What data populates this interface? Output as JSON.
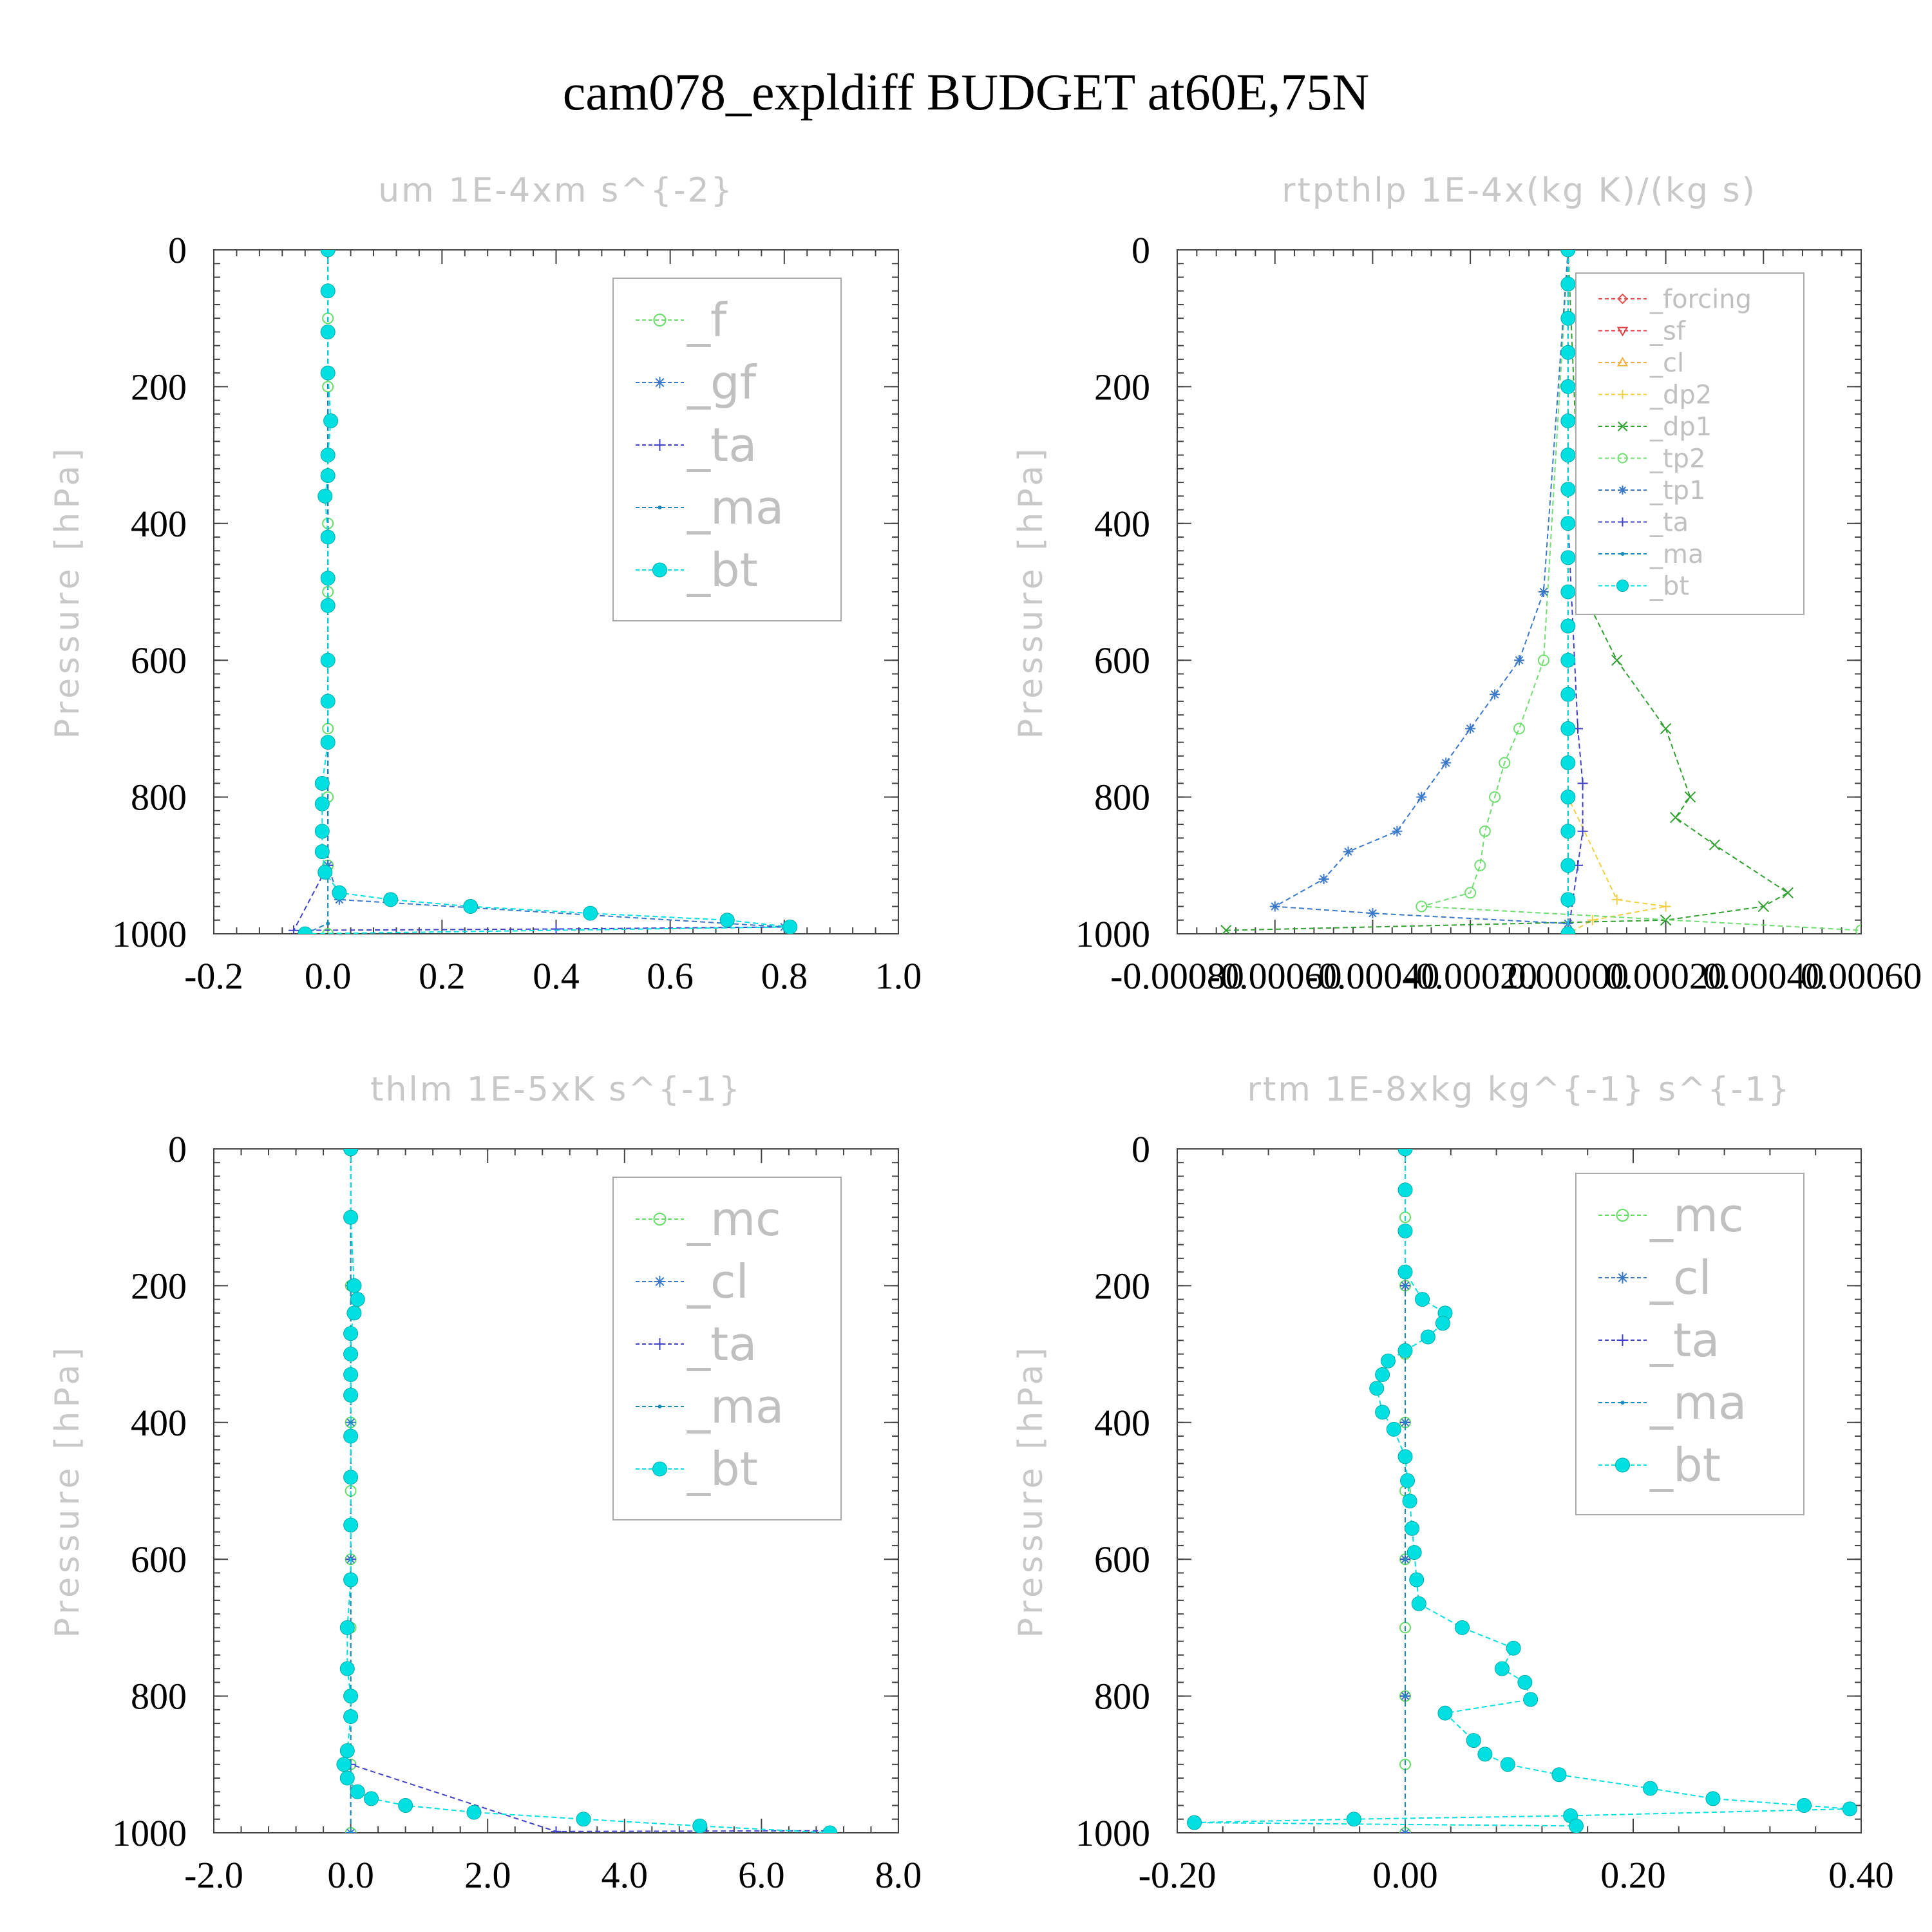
{
  "figure": {
    "title": "cam078_expldiff  BUDGET at60E,75N"
  },
  "colors": {
    "f": "#66dd66",
    "gf": "#3a78c8",
    "ta": "#4040c8",
    "ma": "#1a8ab8",
    "bt": "#00e0e0",
    "forcing": "#e05050",
    "sf": "#e04040",
    "cl_y": "#f0b040",
    "dp2": "#f0d040",
    "dp1": "#30a030",
    "tp2": "#70dd70",
    "tp1": "#3a78c8",
    "mc": "#66dd66",
    "cl": "#3a78c8"
  },
  "chart_data": [
    {
      "type": "line",
      "title": "um   1E-4xm s^{-2}",
      "ylabel": "Pressure [hPa]",
      "xlim": [
        -0.2,
        1.0
      ],
      "ylim": [
        1000,
        0
      ],
      "xticks": [
        "-0.2",
        "0.0",
        "0.2",
        "0.4",
        "0.6",
        "0.8",
        "1.0"
      ],
      "yticks": [
        "0",
        "200",
        "400",
        "600",
        "800",
        "1000"
      ],
      "legend_position": "top-right",
      "series": [
        {
          "name": "_f",
          "color": "#66dd66",
          "marker": "circle-open",
          "x": [
            0,
            0,
            0,
            0,
            0,
            0,
            0,
            0,
            0,
            0,
            0
          ],
          "y": [
            0,
            100,
            200,
            300,
            400,
            500,
            600,
            700,
            800,
            900,
            1000
          ]
        },
        {
          "name": "_gf",
          "color": "#3a78c8",
          "marker": "star",
          "x": [
            0,
            0,
            0,
            0,
            0.02,
            0.8
          ],
          "y": [
            0,
            300,
            600,
            900,
            950,
            990
          ]
        },
        {
          "name": "_ta",
          "color": "#4040c8",
          "marker": "plus",
          "x": [
            0,
            0,
            0,
            0,
            -0.06,
            0.4,
            0.8
          ],
          "y": [
            0,
            300,
            600,
            900,
            995,
            993,
            990
          ]
        },
        {
          "name": "_ma",
          "color": "#1a8ab8",
          "marker": "dot",
          "x": [
            0,
            0,
            0,
            0,
            0,
            -0.04
          ],
          "y": [
            0,
            300,
            600,
            900,
            985,
            1000
          ]
        },
        {
          "name": "_bt",
          "color": "#00e0e0",
          "marker": "circle-filled",
          "x": [
            0,
            0,
            0,
            0,
            0.005,
            0,
            0,
            -0.005,
            0,
            0,
            0,
            0,
            0,
            0,
            -0.01,
            -0.01,
            -0.01,
            -0.01,
            -0.005,
            0.02,
            0.11,
            0.25,
            0.46,
            0.7,
            0.81,
            -0.04
          ],
          "y": [
            0,
            60,
            120,
            180,
            250,
            300,
            330,
            360,
            420,
            480,
            520,
            600,
            660,
            720,
            780,
            810,
            850,
            880,
            910,
            940,
            950,
            960,
            970,
            980,
            990,
            1000
          ]
        }
      ]
    },
    {
      "type": "line",
      "title": "rtpthlp   1E-4x(kg K)/(kg s)",
      "ylabel": "Pressure [hPa]",
      "xlim": [
        -0.0008,
        0.0006
      ],
      "ylim": [
        1000,
        0
      ],
      "xticks": [
        "-0.00080",
        "-0.00060",
        "-0.00040",
        "-0.00020",
        "0.00000",
        "0.00020",
        "0.00040",
        "0.00060"
      ],
      "yticks": [
        "0",
        "200",
        "400",
        "600",
        "800",
        "1000"
      ],
      "legend_position": "top-right",
      "series": [
        {
          "name": "_forcing",
          "color": "#e05050",
          "marker": "diamond",
          "x": [
            0,
            0,
            0,
            0,
            0,
            0
          ],
          "y": [
            0,
            200,
            400,
            600,
            800,
            1000
          ]
        },
        {
          "name": "_sf",
          "color": "#e04040",
          "marker": "triangle-down",
          "x": [
            0,
            0,
            0,
            0,
            0,
            0
          ],
          "y": [
            0,
            200,
            400,
            600,
            800,
            1000
          ]
        },
        {
          "name": "_cl",
          "color": "#f0b040",
          "marker": "triangle-up",
          "x": [
            0,
            0,
            0,
            0,
            0,
            0
          ],
          "y": [
            0,
            200,
            400,
            600,
            800,
            1000
          ]
        },
        {
          "name": "_dp2",
          "color": "#f0d040",
          "marker": "plus",
          "x": [
            0,
            0,
            0,
            0,
            0.0001,
            0.0002,
            5e-05,
            0
          ],
          "y": [
            0,
            200,
            400,
            800,
            950,
            960,
            980,
            1000
          ]
        },
        {
          "name": "_dp1",
          "color": "#30a030",
          "marker": "x",
          "x": [
            0,
            3e-05,
            0.0001,
            0.0002,
            0.00025,
            0.00022,
            0.0003,
            0.00045,
            0.0004,
            0.0002,
            -0.0007
          ],
          "y": [
            0,
            500,
            600,
            700,
            800,
            830,
            870,
            940,
            960,
            980,
            995
          ]
        },
        {
          "name": "_tp2",
          "color": "#70dd70",
          "marker": "circle-open",
          "x": [
            0,
            -5e-05,
            -0.0001,
            -0.00013,
            -0.00015,
            -0.00017,
            -0.00018,
            -0.0002,
            -0.0003,
            0.0006
          ],
          "y": [
            0,
            600,
            700,
            750,
            800,
            850,
            900,
            940,
            960,
            995
          ]
        },
        {
          "name": "_tp1",
          "color": "#3a78c8",
          "marker": "star",
          "x": [
            0,
            -5e-05,
            -0.0001,
            -0.00015,
            -0.0002,
            -0.00025,
            -0.0003,
            -0.00035,
            -0.00045,
            -0.0005,
            -0.0006,
            -0.0004,
            0
          ],
          "y": [
            0,
            500,
            600,
            650,
            700,
            750,
            800,
            850,
            880,
            920,
            960,
            970,
            985
          ]
        },
        {
          "name": "_ta",
          "color": "#4040c8",
          "marker": "plus",
          "x": [
            0,
            0,
            2e-05,
            3e-05,
            3e-05,
            2e-05,
            0
          ],
          "y": [
            0,
            400,
            700,
            780,
            850,
            900,
            1000
          ]
        },
        {
          "name": "_ma",
          "color": "#1a8ab8",
          "marker": "dot",
          "x": [
            0,
            0,
            0,
            0,
            0,
            0
          ],
          "y": [
            0,
            200,
            400,
            600,
            800,
            1000
          ]
        },
        {
          "name": "_bt",
          "color": "#00e0e0",
          "marker": "circle-filled",
          "x": [
            0,
            0,
            0,
            0,
            0,
            0,
            0,
            0,
            0,
            0,
            0,
            0,
            0,
            0,
            0,
            0,
            0,
            0,
            0,
            0,
            0
          ],
          "y": [
            0,
            50,
            100,
            150,
            200,
            250,
            300,
            350,
            400,
            450,
            500,
            550,
            600,
            650,
            700,
            750,
            800,
            850,
            900,
            950,
            1000
          ]
        }
      ]
    },
    {
      "type": "line",
      "title": "thlm   1E-5xK s^{-1}",
      "ylabel": "Pressure [hPa]",
      "xlim": [
        -2.0,
        8.0
      ],
      "ylim": [
        1000,
        0
      ],
      "xticks": [
        "-2.0",
        "0.0",
        "2.0",
        "4.0",
        "6.0",
        "8.0"
      ],
      "yticks": [
        "0",
        "200",
        "400",
        "600",
        "800",
        "1000"
      ],
      "legend_position": "top-right",
      "series": [
        {
          "name": "_mc",
          "color": "#66dd66",
          "marker": "circle-open",
          "x": [
            0,
            0,
            0,
            0,
            0,
            0,
            0,
            0,
            0,
            0,
            0
          ],
          "y": [
            0,
            100,
            200,
            300,
            400,
            500,
            600,
            700,
            800,
            900,
            1000
          ]
        },
        {
          "name": "_cl",
          "color": "#3a78c8",
          "marker": "star",
          "x": [
            0,
            0,
            0,
            0,
            0,
            0
          ],
          "y": [
            0,
            200,
            400,
            600,
            800,
            1000
          ]
        },
        {
          "name": "_ta",
          "color": "#4040c8",
          "marker": "plus",
          "x": [
            0,
            0,
            0,
            0,
            3,
            7
          ],
          "y": [
            0,
            300,
            600,
            900,
            998,
            997
          ]
        },
        {
          "name": "_ma",
          "color": "#1a8ab8",
          "marker": "dot",
          "x": [
            0,
            0,
            0,
            0,
            0,
            0
          ],
          "y": [
            0,
            200,
            400,
            600,
            800,
            1000
          ]
        },
        {
          "name": "_bt",
          "color": "#00e0e0",
          "marker": "circle-filled",
          "x": [
            0,
            0,
            0.05,
            0.1,
            0.05,
            0,
            0,
            0,
            0,
            0,
            0,
            0,
            0,
            -0.05,
            -0.05,
            0,
            0,
            -0.05,
            -0.1,
            -0.05,
            0.1,
            0.3,
            0.8,
            1.8,
            3.4,
            5.1,
            7.0
          ],
          "y": [
            0,
            100,
            200,
            220,
            240,
            270,
            300,
            330,
            360,
            420,
            480,
            550,
            630,
            700,
            760,
            800,
            830,
            880,
            900,
            920,
            940,
            950,
            960,
            970,
            980,
            990,
            1000
          ]
        }
      ]
    },
    {
      "type": "line",
      "title": "rtm   1E-8xkg kg^{-1} s^{-1}",
      "ylabel": "Pressure [hPa]",
      "xlim": [
        -0.2,
        0.4
      ],
      "ylim": [
        1000,
        0
      ],
      "xticks": [
        "-0.20",
        "0.00",
        "0.20",
        "0.40"
      ],
      "yticks": [
        "0",
        "200",
        "400",
        "600",
        "800",
        "1000"
      ],
      "legend_position": "top-right",
      "series": [
        {
          "name": "_mc",
          "color": "#66dd66",
          "marker": "circle-open",
          "x": [
            0,
            0,
            0,
            0,
            0,
            0,
            0,
            0,
            0,
            0,
            0
          ],
          "y": [
            0,
            100,
            200,
            300,
            400,
            500,
            600,
            700,
            800,
            900,
            1000
          ]
        },
        {
          "name": "_cl",
          "color": "#3a78c8",
          "marker": "star",
          "x": [
            0,
            0,
            0,
            0,
            0,
            0
          ],
          "y": [
            0,
            200,
            400,
            600,
            800,
            1000
          ]
        },
        {
          "name": "_ta",
          "color": "#4040c8",
          "marker": "plus",
          "x": [
            0,
            0,
            0,
            0,
            0,
            0
          ],
          "y": [
            0,
            200,
            400,
            600,
            800,
            1000
          ]
        },
        {
          "name": "_ma",
          "color": "#1a8ab8",
          "marker": "dot",
          "x": [
            0,
            0,
            0,
            0,
            0,
            0
          ],
          "y": [
            0,
            200,
            400,
            600,
            800,
            1000
          ]
        },
        {
          "name": "_bt",
          "color": "#00e0e0",
          "marker": "circle-filled",
          "x": [
            0,
            0,
            0,
            0,
            0.015,
            0.035,
            0.033,
            0.02,
            0,
            -0.015,
            -0.02,
            -0.025,
            -0.02,
            -0.01,
            0,
            0.002,
            0.004,
            0.006,
            0.008,
            0.01,
            0.012,
            0.05,
            0.095,
            0.085,
            0.105,
            0.11,
            0.035,
            0.06,
            0.07,
            0.09,
            0.135,
            0.215,
            0.27,
            0.35,
            0.39,
            0.145,
            -0.045,
            -0.185,
            0.15
          ],
          "y": [
            0,
            60,
            120,
            180,
            220,
            240,
            255,
            275,
            295,
            310,
            330,
            350,
            385,
            410,
            450,
            485,
            515,
            555,
            590,
            630,
            665,
            700,
            730,
            760,
            780,
            805,
            825,
            865,
            885,
            900,
            915,
            935,
            950,
            960,
            965,
            975,
            980,
            985,
            990
          ]
        }
      ]
    }
  ]
}
